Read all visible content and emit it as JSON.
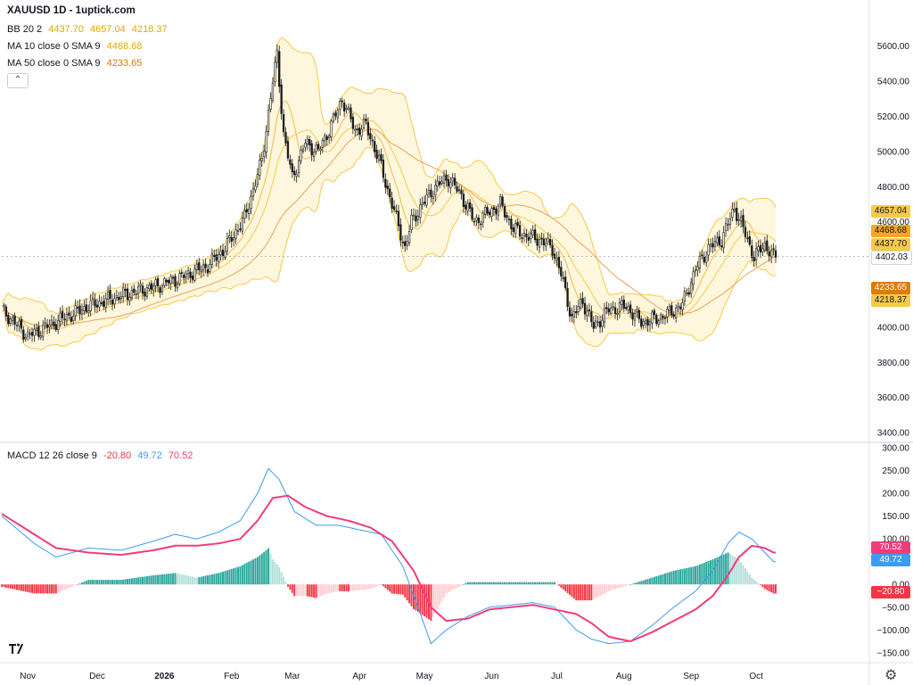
{
  "header": {
    "title": "XAUUSD 1D - 1uptick.com",
    "bb_label": "BB 20 2",
    "bb_values": [
      "4437.70",
      "4657.04",
      "4218.37"
    ],
    "ma10_label": "MA 10 close 0 SMA 9",
    "ma10_value": "4468.68",
    "ma50_label": "MA 50 close 0 SMA 9",
    "ma50_value": "4233.65",
    "macd_label": "MACD 12 26 close 9",
    "macd_values": [
      "-20.80",
      "49.72",
      "70.52"
    ]
  },
  "price_axis": {
    "ticks": [
      "5600.00",
      "5400.00",
      "5200.00",
      "5000.00",
      "4800.00",
      "4600.00",
      "4400.00",
      "4200.00",
      "4000.00",
      "3800.00",
      "3600.00",
      "3400.00"
    ]
  },
  "macd_axis": {
    "ticks": [
      "300.00",
      "250.00",
      "200.00",
      "150.00",
      "100.00",
      "50.00",
      "0.00",
      "−50.00",
      "−100.00",
      "−150.00"
    ]
  },
  "price_badges": [
    {
      "text": "4657.04",
      "value": 4657.04,
      "bg": "#f7c948",
      "fg": "#131722"
    },
    {
      "text": "4468.68",
      "value": 4468.68,
      "bg": "#f5a623",
      "fg": "#131722"
    },
    {
      "text": "4437.70",
      "value": 4437.7,
      "bg": "#f7c948",
      "fg": "#131722"
    },
    {
      "text": "4402.03",
      "value": 4402.03,
      "bg": "#ffffff",
      "fg": "#131722"
    },
    {
      "text": "4233.65",
      "value": 4233.65,
      "bg": "#e07b00",
      "fg": "#ffffff"
    },
    {
      "text": "4218.37",
      "value": 4218.37,
      "bg": "#f7c948",
      "fg": "#131722"
    }
  ],
  "macd_badges": [
    {
      "text": "70.52",
      "value": 70.52,
      "bg": "#f23b7a",
      "fg": "#ffffff"
    },
    {
      "text": "49.72",
      "value": 49.72,
      "bg": "#3d9bf0",
      "fg": "#ffffff"
    },
    {
      "text": "−20.80",
      "value": -20.8,
      "bg": "#f23645",
      "fg": "#ffffff"
    }
  ],
  "x_axis": {
    "labels": [
      "Nov",
      "Dec",
      "2026",
      "Feb",
      "Mar",
      "Apr",
      "May",
      "Jun",
      "Jul",
      "Aug",
      "Sep",
      "Oct"
    ]
  },
  "colors": {
    "candle_up": "#ffffff",
    "candle_down": "#1a1a1a",
    "bb_line": "#f7c948",
    "bb_fill": "#fdf3cf",
    "ma10": "#f5b94a",
    "ma50": "#e9a25c",
    "macd_line": "#3d9bf0",
    "signal_line": "#f23b7a",
    "hist_up_strong": "#26a69a",
    "hist_up_weak": "#b2dfdb",
    "hist_down_strong": "#f23645",
    "hist_down_weak": "#ffcdd2"
  },
  "icons": {
    "logo": "tradingview-logo",
    "settings": "gear-icon",
    "collapse": "chevron-up-icon"
  },
  "chart_data": [
    {
      "type": "candlestick",
      "title": "XAUUSD 1D - 1uptick.com",
      "ylim": [
        3350,
        5700
      ],
      "x_labels": [
        "Nov",
        "Dec",
        "2026",
        "Feb",
        "Mar",
        "Apr",
        "May",
        "Jun",
        "Jul",
        "Aug",
        "Sep",
        "Oct"
      ],
      "anchors": [
        [
          0,
          4100
        ],
        [
          12,
          3950
        ],
        [
          25,
          4030
        ],
        [
          40,
          4120
        ],
        [
          55,
          4180
        ],
        [
          70,
          4230
        ],
        [
          82,
          4280
        ],
        [
          95,
          4350
        ],
        [
          103,
          4450
        ],
        [
          112,
          4620
        ],
        [
          120,
          4950
        ],
        [
          125,
          5400
        ],
        [
          127,
          5550
        ],
        [
          130,
          5100
        ],
        [
          134,
          4850
        ],
        [
          140,
          5050
        ],
        [
          146,
          5000
        ],
        [
          152,
          5150
        ],
        [
          157,
          5300
        ],
        [
          163,
          5120
        ],
        [
          168,
          5150
        ],
        [
          174,
          4950
        ],
        [
          180,
          4700
        ],
        [
          186,
          4450
        ],
        [
          189,
          4600
        ],
        [
          194,
          4700
        ],
        [
          200,
          4800
        ],
        [
          206,
          4850
        ],
        [
          212,
          4750
        ],
        [
          218,
          4600
        ],
        [
          224,
          4650
        ],
        [
          230,
          4700
        ],
        [
          236,
          4560
        ],
        [
          242,
          4520
        ],
        [
          248,
          4500
        ],
        [
          254,
          4450
        ],
        [
          258,
          4300
        ],
        [
          263,
          4050
        ],
        [
          268,
          4150
        ],
        [
          273,
          4000
        ],
        [
          280,
          4100
        ],
        [
          288,
          4120
        ],
        [
          295,
          4030
        ],
        [
          302,
          4050
        ],
        [
          308,
          4080
        ],
        [
          314,
          4130
        ],
        [
          320,
          4330
        ],
        [
          326,
          4450
        ],
        [
          332,
          4500
        ],
        [
          338,
          4680
        ],
        [
          342,
          4560
        ],
        [
          347,
          4400
        ],
        [
          352,
          4470
        ],
        [
          356,
          4402
        ]
      ]
    },
    {
      "type": "line",
      "title": "MACD 12 26 close 9",
      "ylim": [
        -170,
        310
      ],
      "series": [
        {
          "name": "MACD",
          "points": [
            [
              0,
              150
            ],
            [
              15,
              90
            ],
            [
              25,
              60
            ],
            [
              40,
              80
            ],
            [
              55,
              75
            ],
            [
              70,
              95
            ],
            [
              80,
              110
            ],
            [
              90,
              100
            ],
            [
              100,
              115
            ],
            [
              110,
              140
            ],
            [
              118,
              200
            ],
            [
              123,
              255
            ],
            [
              128,
              230
            ],
            [
              135,
              160
            ],
            [
              145,
              130
            ],
            [
              155,
              130
            ],
            [
              165,
              120
            ],
            [
              175,
              110
            ],
            [
              185,
              40
            ],
            [
              192,
              -50
            ],
            [
              198,
              -130
            ],
            [
              205,
              -100
            ],
            [
              215,
              -70
            ],
            [
              225,
              -50
            ],
            [
              235,
              -45
            ],
            [
              245,
              -40
            ],
            [
              255,
              -50
            ],
            [
              265,
              -100
            ],
            [
              272,
              -120
            ],
            [
              280,
              -130
            ],
            [
              290,
              -125
            ],
            [
              300,
              -90
            ],
            [
              310,
              -50
            ],
            [
              320,
              -15
            ],
            [
              328,
              30
            ],
            [
              335,
              90
            ],
            [
              340,
              115
            ],
            [
              346,
              100
            ],
            [
              352,
              70
            ],
            [
              356,
              50
            ]
          ]
        },
        {
          "name": "Signal",
          "points": [
            [
              0,
              155
            ],
            [
              15,
              110
            ],
            [
              25,
              80
            ],
            [
              40,
              70
            ],
            [
              55,
              65
            ],
            [
              70,
              75
            ],
            [
              80,
              85
            ],
            [
              90,
              85
            ],
            [
              100,
              90
            ],
            [
              110,
              100
            ],
            [
              118,
              140
            ],
            [
              125,
              190
            ],
            [
              132,
              195
            ],
            [
              140,
              170
            ],
            [
              150,
              150
            ],
            [
              160,
              140
            ],
            [
              170,
              125
            ],
            [
              180,
              95
            ],
            [
              190,
              30
            ],
            [
              198,
              -50
            ],
            [
              205,
              -80
            ],
            [
              215,
              -75
            ],
            [
              225,
              -55
            ],
            [
              235,
              -50
            ],
            [
              245,
              -45
            ],
            [
              255,
              -55
            ],
            [
              265,
              -65
            ],
            [
              272,
              -85
            ],
            [
              280,
              -115
            ],
            [
              290,
              -125
            ],
            [
              300,
              -105
            ],
            [
              310,
              -80
            ],
            [
              320,
              -55
            ],
            [
              328,
              -25
            ],
            [
              335,
              20
            ],
            [
              340,
              60
            ],
            [
              346,
              85
            ],
            [
              352,
              80
            ],
            [
              356,
              70
            ]
          ]
        }
      ]
    }
  ]
}
